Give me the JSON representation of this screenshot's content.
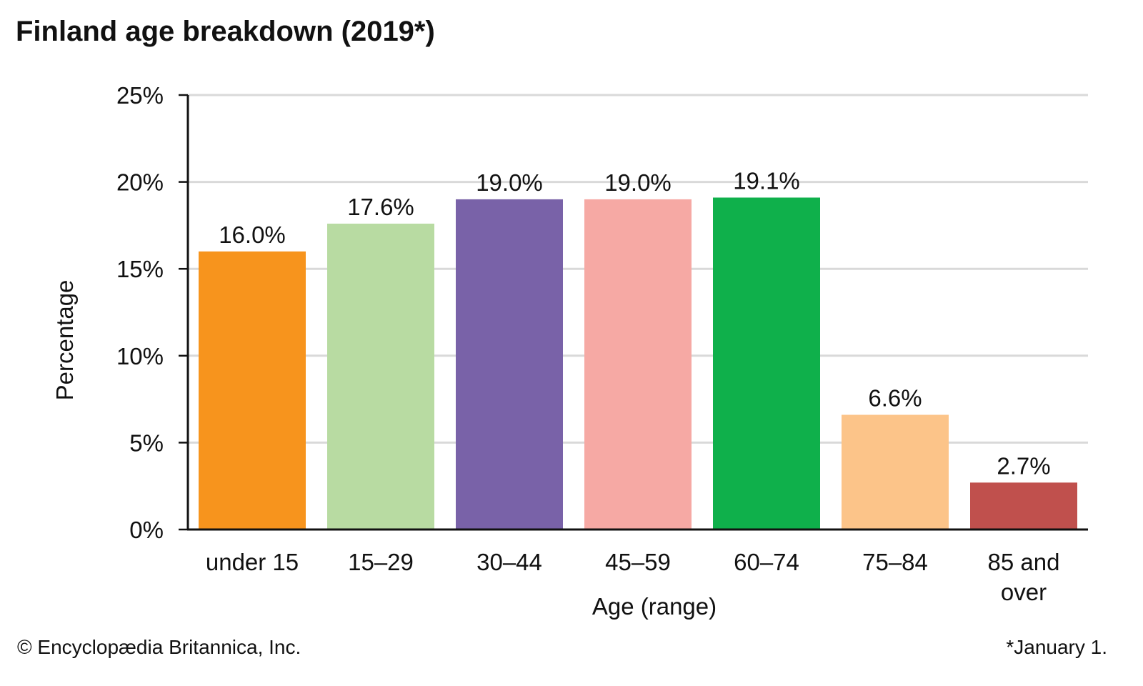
{
  "chart_data": {
    "type": "bar",
    "title": "Finland age breakdown (2019*)",
    "xlabel": "Age (range)",
    "ylabel": "Percentage",
    "categories": [
      "under 15",
      "15–29",
      "30–44",
      "45–59",
      "60–74",
      "75–84",
      "85 and over"
    ],
    "category_lines": [
      [
        "under 15"
      ],
      [
        "15–29"
      ],
      [
        "30–44"
      ],
      [
        "45–59"
      ],
      [
        "60–74"
      ],
      [
        "75–84"
      ],
      [
        "85 and",
        "over"
      ]
    ],
    "values": [
      16.0,
      17.6,
      19.0,
      19.0,
      19.1,
      6.6,
      2.7
    ],
    "value_labels": [
      "16.0%",
      "17.6%",
      "19.0%",
      "19.0%",
      "19.1%",
      "6.6%",
      "2.7%"
    ],
    "colors": [
      "#f7941d",
      "#b8dba2",
      "#7962a8",
      "#f6a9a4",
      "#0fb04b",
      "#fcc489",
      "#c0504d"
    ],
    "ylim": [
      0,
      25
    ],
    "yticks": [
      0,
      5,
      10,
      15,
      20,
      25
    ],
    "ytick_labels": [
      "0%",
      "5%",
      "10%",
      "15%",
      "20%",
      "25%"
    ],
    "grid": true,
    "grid_color": "#d9d9d9"
  },
  "footer": {
    "credit": "© Encyclopædia Britannica, Inc.",
    "footnote": "*January 1."
  }
}
